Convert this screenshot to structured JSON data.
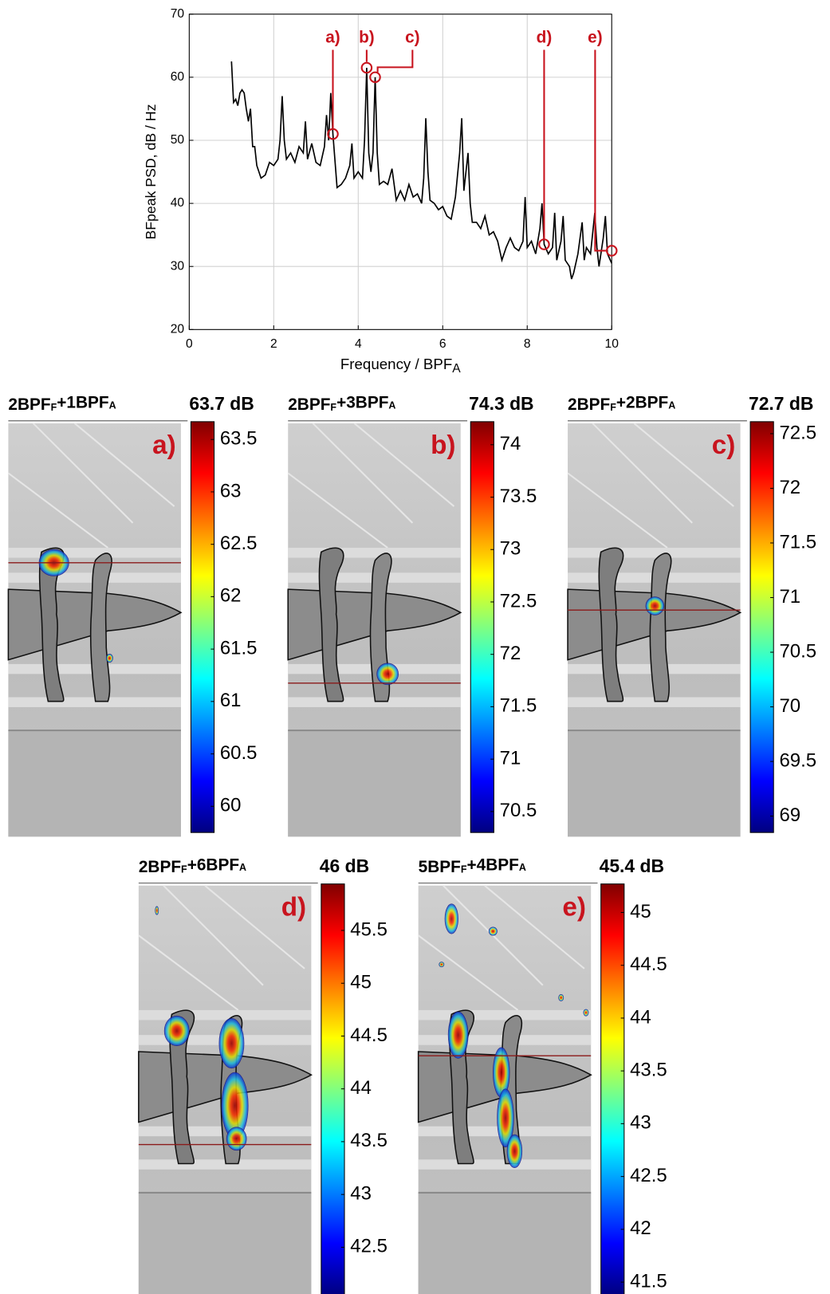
{
  "chart_data": [
    {
      "type": "line",
      "color": "#000000",
      "ylabel": "BFpeak PSD,  dB / Hz",
      "xlabel": [
        "Frequency / BPF",
        "A"
      ],
      "xlim": [
        0,
        10
      ],
      "xticks": [
        0,
        2,
        4,
        6,
        8,
        10
      ],
      "ylim": [
        20,
        70
      ],
      "yticks": [
        20,
        30,
        40,
        50,
        60,
        70
      ],
      "grid": true,
      "x": [
        1.0,
        1.05,
        1.1,
        1.15,
        1.2,
        1.25,
        1.3,
        1.35,
        1.4,
        1.45,
        1.5,
        1.55,
        1.6,
        1.7,
        1.8,
        1.9,
        2.0,
        2.1,
        2.15,
        2.2,
        2.25,
        2.3,
        2.4,
        2.5,
        2.6,
        2.7,
        2.75,
        2.8,
        2.9,
        3.0,
        3.1,
        3.2,
        3.25,
        3.3,
        3.35,
        3.4,
        3.5,
        3.6,
        3.7,
        3.8,
        3.85,
        3.9,
        4.0,
        4.1,
        4.15,
        4.2,
        4.25,
        4.3,
        4.35,
        4.4,
        4.45,
        4.5,
        4.6,
        4.7,
        4.8,
        4.9,
        5.0,
        5.1,
        5.2,
        5.3,
        5.4,
        5.5,
        5.55,
        5.6,
        5.65,
        5.7,
        5.8,
        5.9,
        6.0,
        6.1,
        6.2,
        6.3,
        6.4,
        6.45,
        6.5,
        6.6,
        6.65,
        6.7,
        6.8,
        6.9,
        7.0,
        7.1,
        7.2,
        7.3,
        7.4,
        7.5,
        7.6,
        7.7,
        7.8,
        7.9,
        7.95,
        8.0,
        8.1,
        8.2,
        8.3,
        8.35,
        8.4,
        8.5,
        8.6,
        8.65,
        8.7,
        8.8,
        8.85,
        8.9,
        9.0,
        9.05,
        9.1,
        9.2,
        9.3,
        9.35,
        9.4,
        9.5,
        9.6,
        9.65,
        9.7,
        9.8,
        9.85,
        9.9,
        10.0
      ],
      "values": [
        62.5,
        56,
        56.5,
        55.5,
        57.5,
        58,
        57.5,
        55,
        53,
        55,
        49,
        49,
        46,
        44,
        44.5,
        46.5,
        46,
        47,
        50,
        57,
        50,
        47,
        48,
        46.5,
        49,
        48,
        53,
        47,
        49.5,
        46.5,
        46,
        49,
        54,
        50,
        57.5,
        51,
        42.5,
        43,
        44,
        46,
        49.5,
        44,
        45,
        44,
        50,
        61.5,
        48,
        45,
        48,
        60,
        48,
        43,
        43.5,
        43,
        45.5,
        40.5,
        42,
        40.5,
        43,
        41,
        41.5,
        40,
        44,
        53.5,
        45,
        40.5,
        40,
        39,
        39.5,
        38,
        37.5,
        41,
        48,
        53.5,
        42,
        48,
        40,
        37,
        37,
        36,
        38,
        35,
        35.5,
        34,
        31,
        33,
        34.5,
        33,
        32.5,
        34,
        41,
        33,
        34,
        32,
        36,
        40,
        33.5,
        32,
        33,
        38.5,
        31,
        34,
        38,
        31,
        30,
        28,
        29,
        32,
        37,
        31,
        33,
        32,
        38.5,
        33,
        30,
        34.5,
        38,
        32,
        30.5
      ],
      "annotations": [
        {
          "text": "a)",
          "x": 3.4,
          "y": 51
        },
        {
          "text": "b)",
          "x": 4.2,
          "y": 61.5
        },
        {
          "text": "c)",
          "x": 4.4,
          "y": 60
        },
        {
          "text": "d)",
          "x": 8.4,
          "y": 33.5
        },
        {
          "text": "e)",
          "x": 10,
          "y": 32.5
        }
      ]
    },
    {
      "type": "colorbar-map",
      "title": [
        "2BPF",
        "F",
        "+1BPF",
        "A"
      ],
      "max_label": "63.7 dB",
      "panel_label": "a)",
      "colormap": "jet",
      "ylim": [
        59.75,
        63.67
      ],
      "yticks": [
        60,
        60.5,
        61,
        61.5,
        62,
        62.5,
        63,
        63.5
      ]
    },
    {
      "type": "colorbar-map",
      "title": [
        "2BPF",
        "F",
        "+3BPF",
        "A"
      ],
      "max_label": "74.3 dB",
      "panel_label": "b)",
      "colormap": "jet",
      "ylim": [
        70.3,
        74.22
      ],
      "yticks": [
        70.5,
        71,
        71.5,
        72,
        72.5,
        73,
        73.5,
        74
      ]
    },
    {
      "type": "colorbar-map",
      "title": [
        "2BPF",
        "F",
        "+2BPF",
        "A"
      ],
      "max_label": "72.7 dB",
      "panel_label": "c)",
      "colormap": "jet",
      "ylim": [
        68.85,
        72.61
      ],
      "yticks": [
        69,
        69.5,
        70,
        70.5,
        71,
        71.5,
        72,
        72.5
      ]
    },
    {
      "type": "colorbar-map",
      "title": [
        "2BPF",
        "F",
        "+6BPF",
        "A"
      ],
      "max_label": "46 dB",
      "panel_label": "d)",
      "colormap": "jet",
      "ylim": [
        42.05,
        45.94
      ],
      "yticks": [
        42.5,
        43,
        43.5,
        44,
        44.5,
        45,
        45.5
      ]
    },
    {
      "type": "colorbar-map",
      "title": [
        "5BPF",
        "F",
        "+4BPF",
        "A"
      ],
      "max_label": "45.4 dB",
      "panel_label": "e)",
      "colormap": "jet",
      "ylim": [
        41.38,
        45.27
      ],
      "yticks": [
        41.5,
        42,
        42.5,
        43,
        43.5,
        44,
        44.5,
        45
      ]
    }
  ]
}
